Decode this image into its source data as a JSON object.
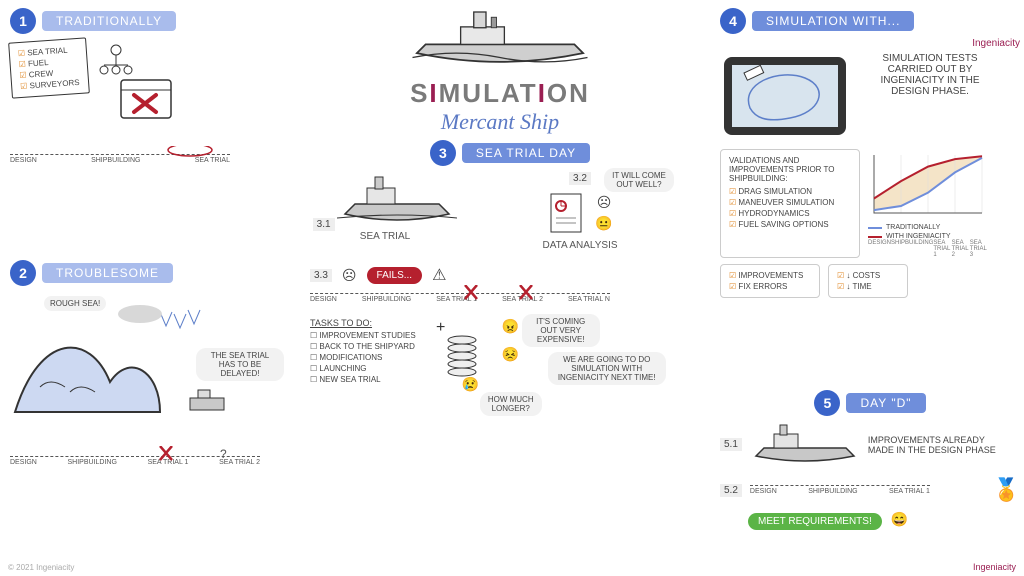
{
  "colors": {
    "accent_blue": "#6f8edb",
    "pill_blue_light": "#a9bcec",
    "num_blue": "#3a64c9",
    "red": "#b5202e",
    "green": "#5bb446",
    "orange_check": "#e08b2c",
    "trad_line": "#6f8edb",
    "ing_line": "#b5202e",
    "chart_fill": "#dfe8c8",
    "grey_text": "#5a5a5a",
    "script_blue": "#5b79c4",
    "brand_pink": "#9a1e52",
    "title_grey": "#7a7a7a"
  },
  "title": {
    "main_pre": "S",
    "main_high1": "I",
    "main_mid": "MULAT",
    "main_high2": "I",
    "main_post": "ON",
    "script": "Mercant Ship"
  },
  "brand": {
    "name": "Ingeniacity"
  },
  "s1": {
    "num": "1",
    "label": "TRADITIONALLY",
    "checklist": [
      "SEA TRIAL",
      "FUEL",
      "CREW",
      "SURVEYORS"
    ],
    "timeline": [
      "DESIGN",
      "SHIPBUILDING",
      "SEA TRIAL"
    ]
  },
  "s2": {
    "num": "2",
    "label": "TROUBLESOME",
    "rough": "ROUGH SEA!",
    "delay": "THE SEA TRIAL HAS TO BE DELAYED!",
    "timeline": [
      "DESIGN",
      "SHIPBUILDING",
      "SEA TRIAL 1",
      "SEA TRIAL 2"
    ]
  },
  "s3": {
    "num": "3",
    "label": "SEA TRIAL DAY",
    "s31_num": "3.1",
    "s31_label": "SEA TRIAL",
    "s32_num": "3.2",
    "s32_label": "DATA ANALYSIS",
    "s32_bubble": "IT WILL COME OUT WELL?",
    "s33_num": "3.3",
    "fails": "FAILS...",
    "timeline": [
      "DESIGN",
      "SHIPBUILDING",
      "SEA TRIAL 1",
      "SEA TRIAL 2",
      "SEA TRIAL N"
    ],
    "tasks_title": "TASKS TO DO:",
    "tasks": [
      "IMPROVEMENT STUDIES",
      "BACK TO THE SHIPYARD",
      "MODIFICATIONS",
      "LAUNCHING",
      "NEW SEA TRIAL"
    ],
    "expensive": "IT'S COMING OUT VERY EXPENSIVE!",
    "howlong": "HOW MUCH LONGER?",
    "nexttime": "WE ARE GOING TO DO SIMULATION WITH INGENIACITY NEXT TIME!"
  },
  "s4": {
    "num": "4",
    "label": "SIMULATION WITH...",
    "desc": "SIMULATION TESTS CARRIED OUT BY INGENIACITY IN THE DESIGN PHASE.",
    "validations_title": "VALIDATIONS AND IMPROVEMENTS PRIOR TO SHIPBUILDING:",
    "validations": [
      "DRAG SIMULATION",
      "MANEUVER SIMULATION",
      "HYDRODYNAMICS",
      "FUEL SAVING OPTIONS"
    ],
    "chart": {
      "type": "line",
      "xlabels": [
        "DESIGN",
        "SHIPBUILDING",
        "SEA TRIAL 1",
        "SEA TRIAL 2",
        "SEA TRIAL 3"
      ],
      "trad": [
        0.05,
        0.12,
        0.35,
        0.7,
        0.95
      ],
      "ing": [
        0.25,
        0.55,
        0.8,
        0.93,
        0.98
      ],
      "trad_color": "#6f8edb",
      "ing_color": "#b5202e",
      "fill_color": "#f0d9b0",
      "legend_trad": "TRADITIONALLY",
      "legend_ing": "WITH INGENIACITY"
    },
    "outcomes": {
      "left": [
        "IMPROVEMENTS",
        "FIX ERRORS"
      ],
      "right": [
        "↓ COSTS",
        "↓ TIME"
      ]
    }
  },
  "s5": {
    "num": "5",
    "label": "DAY \"D\"",
    "s51_num": "5.1",
    "s51_text": "IMPROVEMENTS ALREADY MADE IN THE DESIGN PHASE",
    "s52_num": "5.2",
    "timeline": [
      "DESIGN",
      "SHIPBUILDING",
      "SEA TRIAL 1"
    ],
    "meet": "MEET REQUIREMENTS!"
  },
  "footer": "© 2021 Ingeniacity"
}
